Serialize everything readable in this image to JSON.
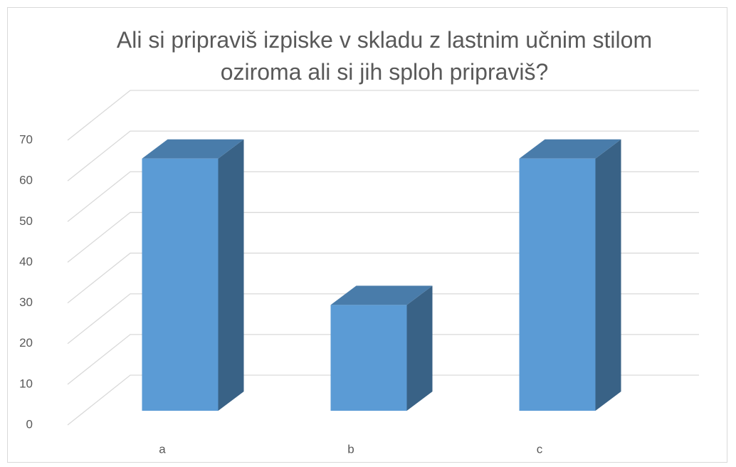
{
  "chart_data": {
    "type": "bar3d",
    "title": "Ali si pripraviš izpiske v skladu z lastnim učnim stilom oziroma ali si jih sploh pripraviš?",
    "categories": [
      "a",
      "b",
      "c"
    ],
    "values": [
      62,
      26,
      62
    ],
    "color": "#5b9bd5",
    "ylim": [
      0,
      70
    ],
    "yticks": [
      0,
      10,
      20,
      30,
      40,
      50,
      60,
      70
    ],
    "grid": true
  }
}
